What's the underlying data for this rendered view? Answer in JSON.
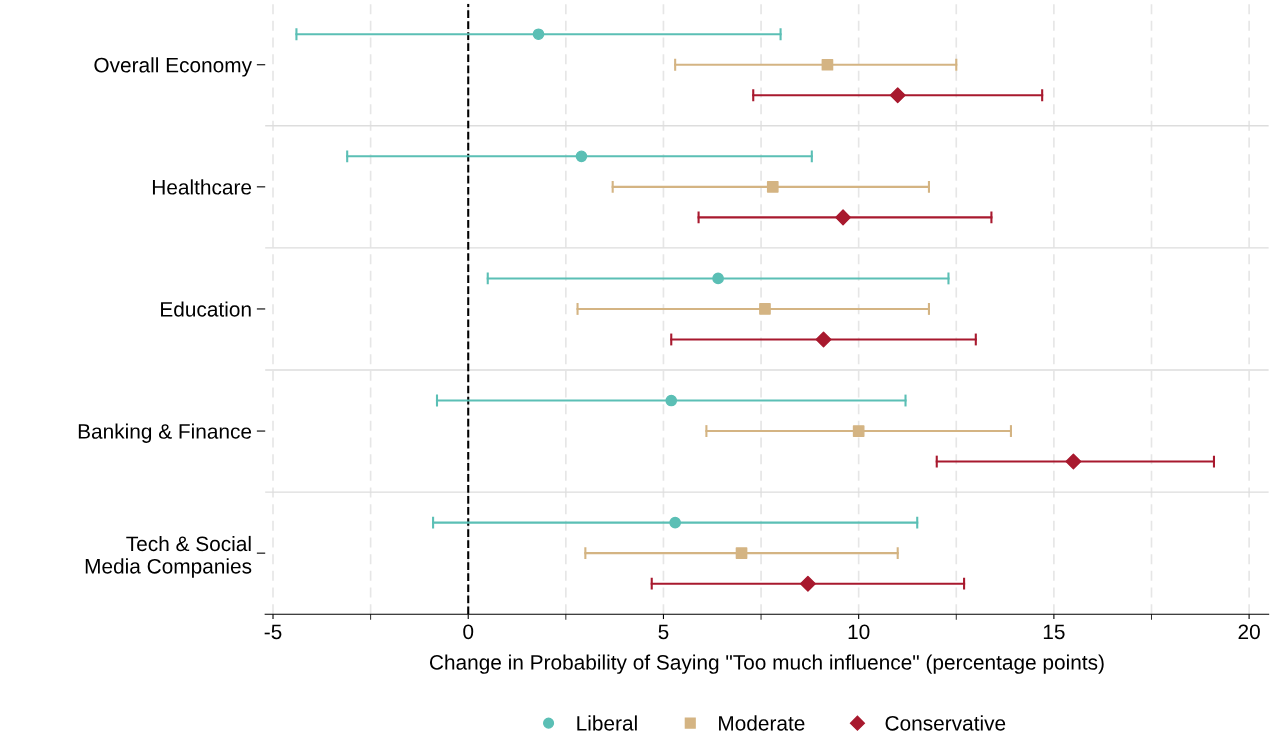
{
  "chart_data": {
    "type": "scatter",
    "orientation": "horizontal",
    "xlabel": "Change in Probability of Saying \"Too much influence\" (percentage points)",
    "categories": [
      "Overall Economy",
      "Healthcare",
      "Education",
      "Banking & Finance",
      "Tech & Social\nMedia Companies"
    ],
    "series": [
      {
        "name": "Liberal",
        "color": "#5bbfb5",
        "marker": "circle",
        "values": [
          1.8,
          2.9,
          6.4,
          5.2,
          5.3
        ],
        "errors": [
          [
            -4.4,
            8.0
          ],
          [
            -3.1,
            8.8
          ],
          [
            0.5,
            12.3
          ],
          [
            -0.8,
            11.2
          ],
          [
            -0.9,
            11.5
          ]
        ]
      },
      {
        "name": "Moderate",
        "color": "#d4b483",
        "marker": "square",
        "values": [
          9.2,
          7.8,
          7.6,
          10.0,
          7.0
        ],
        "errors": [
          [
            5.3,
            12.5
          ],
          [
            3.7,
            11.8
          ],
          [
            2.8,
            11.8
          ],
          [
            6.1,
            13.9
          ],
          [
            3.0,
            11.0
          ]
        ]
      },
      {
        "name": "Conservative",
        "color": "#a8192e",
        "marker": "diamond",
        "values": [
          11.0,
          9.6,
          9.1,
          15.5,
          8.7
        ],
        "errors": [
          [
            7.3,
            14.7
          ],
          [
            5.9,
            13.4
          ],
          [
            5.2,
            13.0
          ],
          [
            12.0,
            19.1
          ],
          [
            4.7,
            12.7
          ]
        ]
      }
    ],
    "xlim": [
      -5.2,
      20.5
    ],
    "xticks": [
      -5,
      0,
      5,
      10,
      15,
      20
    ],
    "ref_lines": [
      {
        "axis": "x",
        "value": 0,
        "color": "#000000",
        "line_style": "dashed"
      }
    ],
    "grid": "x",
    "legend": "bottom"
  }
}
